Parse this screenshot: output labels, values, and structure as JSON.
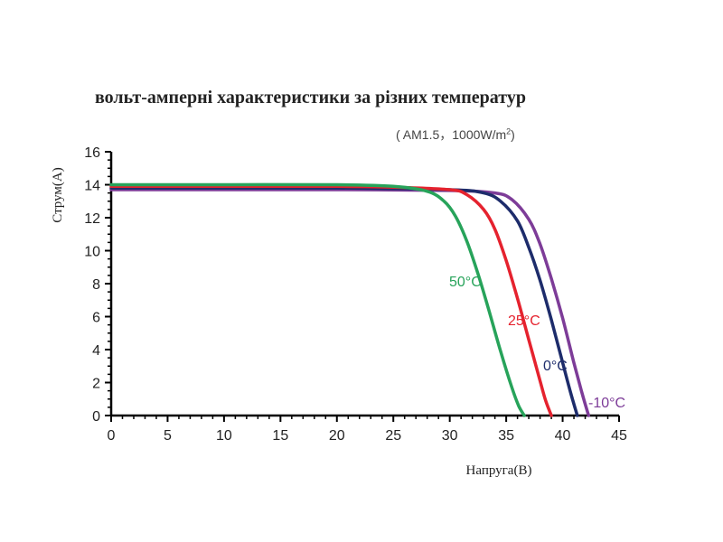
{
  "chart_data": {
    "type": "line",
    "title": "вольт-амперні характеристики за різних температур",
    "subtitle": {
      "prefix": "( AM1.5，1000W/m",
      "sup": "2",
      "suffix": ")"
    },
    "xlabel": "Напруга(В)",
    "ylabel": "Струм(А)",
    "xlim": [
      0,
      45
    ],
    "ylim": [
      0,
      16
    ],
    "xticks": [
      0,
      5,
      10,
      15,
      20,
      25,
      30,
      35,
      40,
      45
    ],
    "yticks": [
      0,
      2,
      4,
      6,
      8,
      10,
      12,
      14,
      16
    ],
    "grid": false,
    "series": [
      {
        "name": "50°C",
        "color": "#27a35a",
        "x": [
          0,
          10,
          20,
          25,
          28,
          29.5,
          30.5,
          31.5,
          32.5,
          33.5,
          34.5,
          35.5,
          36.1,
          36.6
        ],
        "y": [
          14.0,
          14.0,
          14.0,
          13.9,
          13.6,
          13.0,
          12.1,
          10.6,
          8.6,
          6.3,
          3.9,
          1.7,
          0.6,
          0
        ]
      },
      {
        "name": "25°C",
        "color": "#e5222e",
        "x": [
          0,
          10,
          20,
          25,
          30,
          31.5,
          33,
          34,
          35,
          36,
          37,
          38,
          38.5,
          39.0
        ],
        "y": [
          13.9,
          13.9,
          13.9,
          13.85,
          13.7,
          13.4,
          12.5,
          11.3,
          9.4,
          7.1,
          4.6,
          2.1,
          0.9,
          0
        ]
      },
      {
        "name": "0°C",
        "color": "#1d2c6b",
        "x": [
          0,
          10,
          20,
          30,
          33,
          34.5,
          36,
          37,
          38,
          39,
          40,
          40.7,
          41.3
        ],
        "y": [
          13.8,
          13.8,
          13.8,
          13.7,
          13.5,
          13.0,
          11.8,
          10.2,
          8.2,
          5.8,
          3.2,
          1.4,
          0
        ]
      },
      {
        "name": "-10°C",
        "color": "#7d3c98",
        "x": [
          0,
          10,
          20,
          30,
          34,
          35.5,
          37,
          38,
          39,
          40,
          41,
          41.7,
          42.3
        ],
        "y": [
          13.7,
          13.7,
          13.7,
          13.65,
          13.5,
          13.1,
          11.9,
          10.4,
          8.3,
          5.9,
          3.2,
          1.4,
          0
        ]
      }
    ]
  }
}
